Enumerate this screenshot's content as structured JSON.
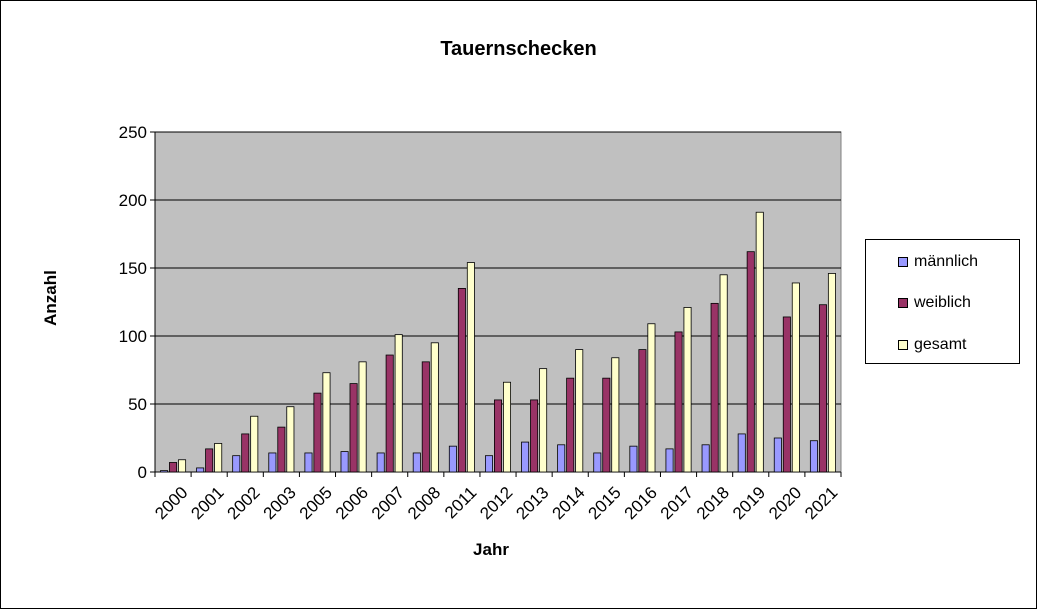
{
  "chart_data": {
    "type": "bar",
    "title": "Tauernschecken",
    "xlabel": "Jahr",
    "ylabel": "Anzahl",
    "ylim": [
      0,
      250
    ],
    "yticks": [
      "0",
      "50",
      "100",
      "150",
      "200",
      "250"
    ],
    "grid": true,
    "legend_position": "right",
    "categories": [
      "2000",
      "2001",
      "2002",
      "2003",
      "2005",
      "2006",
      "2007",
      "2008",
      "2011",
      "2012",
      "2013",
      "2014",
      "2015",
      "2016",
      "2017",
      "2018",
      "2019",
      "2020",
      "2021"
    ],
    "series": [
      {
        "name": "männlich",
        "color": "#9999ff",
        "values": [
          1,
          3,
          12,
          14,
          14,
          15,
          14,
          14,
          19,
          12,
          22,
          20,
          14,
          19,
          17,
          20,
          28,
          25,
          23
        ]
      },
      {
        "name": "weiblich",
        "color": "#993366",
        "values": [
          7,
          17,
          28,
          33,
          58,
          65,
          86,
          81,
          135,
          53,
          53,
          69,
          69,
          90,
          103,
          124,
          162,
          114,
          123
        ]
      },
      {
        "name": "gesamt",
        "color": "#ffffcc",
        "values": [
          9,
          21,
          41,
          48,
          73,
          81,
          101,
          95,
          154,
          66,
          76,
          90,
          84,
          109,
          121,
          145,
          191,
          139,
          146
        ]
      }
    ],
    "plot_background": "#c0c0c0"
  }
}
